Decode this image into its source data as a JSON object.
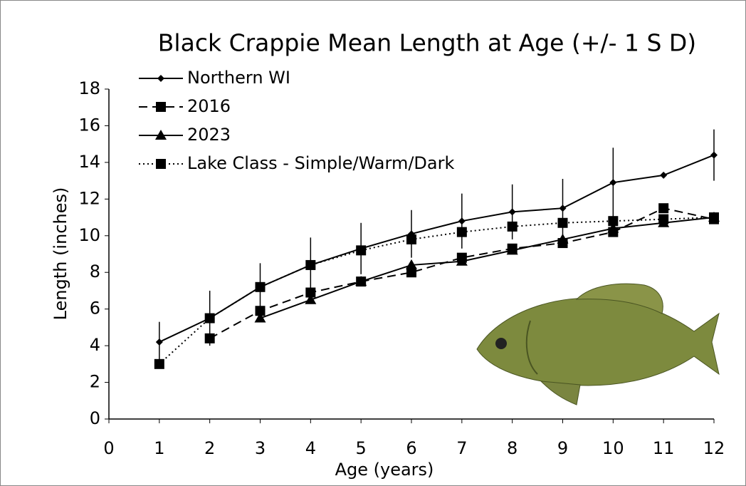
{
  "chart_data": {
    "type": "line",
    "title": "Black Crappie Mean Length at Age (+/- 1 S D)",
    "x_label": "Age (years)",
    "y_label": "Length (inches)",
    "x": [
      1,
      2,
      3,
      4,
      5,
      6,
      7,
      8,
      9,
      10,
      11,
      12
    ],
    "xlim": [
      0,
      12
    ],
    "xticks": [
      0,
      1,
      2,
      3,
      4,
      5,
      6,
      7,
      8,
      9,
      10,
      11,
      12
    ],
    "ylim": [
      0,
      18
    ],
    "yticks": [
      0,
      2,
      4,
      6,
      8,
      10,
      12,
      14,
      16,
      18
    ],
    "grid": false,
    "legend": "upper left",
    "series": [
      {
        "name": "Northern WI",
        "color": "#000000",
        "line_style": "solid",
        "marker": "diamond",
        "values": [
          4.2,
          5.5,
          7.2,
          8.4,
          9.3,
          10.1,
          10.8,
          11.3,
          11.5,
          12.9,
          13.3,
          14.4
        ],
        "errors": [
          1.1,
          1.5,
          1.3,
          1.5,
          1.4,
          1.3,
          1.5,
          1.5,
          1.6,
          1.9,
          null,
          1.4
        ]
      },
      {
        "name": "2016",
        "color": "#000000",
        "line_style": "dashed",
        "marker": "square",
        "values": [
          null,
          4.4,
          5.9,
          6.9,
          7.5,
          8.0,
          8.8,
          9.3,
          9.6,
          10.2,
          11.5,
          10.9
        ]
      },
      {
        "name": "2023",
        "color": "#000000",
        "line_style": "solid",
        "marker": "triangle",
        "values": [
          null,
          null,
          5.5,
          6.5,
          7.5,
          8.4,
          8.6,
          9.2,
          9.8,
          10.4,
          10.7,
          11.0
        ]
      },
      {
        "name": "Lake Class - Simple/Warm/Dark",
        "color": "#000000",
        "line_style": "dotted",
        "marker": "square",
        "values": [
          3.0,
          5.5,
          7.2,
          8.4,
          9.2,
          9.8,
          10.2,
          10.5,
          10.7,
          10.8,
          10.9,
          11.0
        ]
      }
    ]
  }
}
